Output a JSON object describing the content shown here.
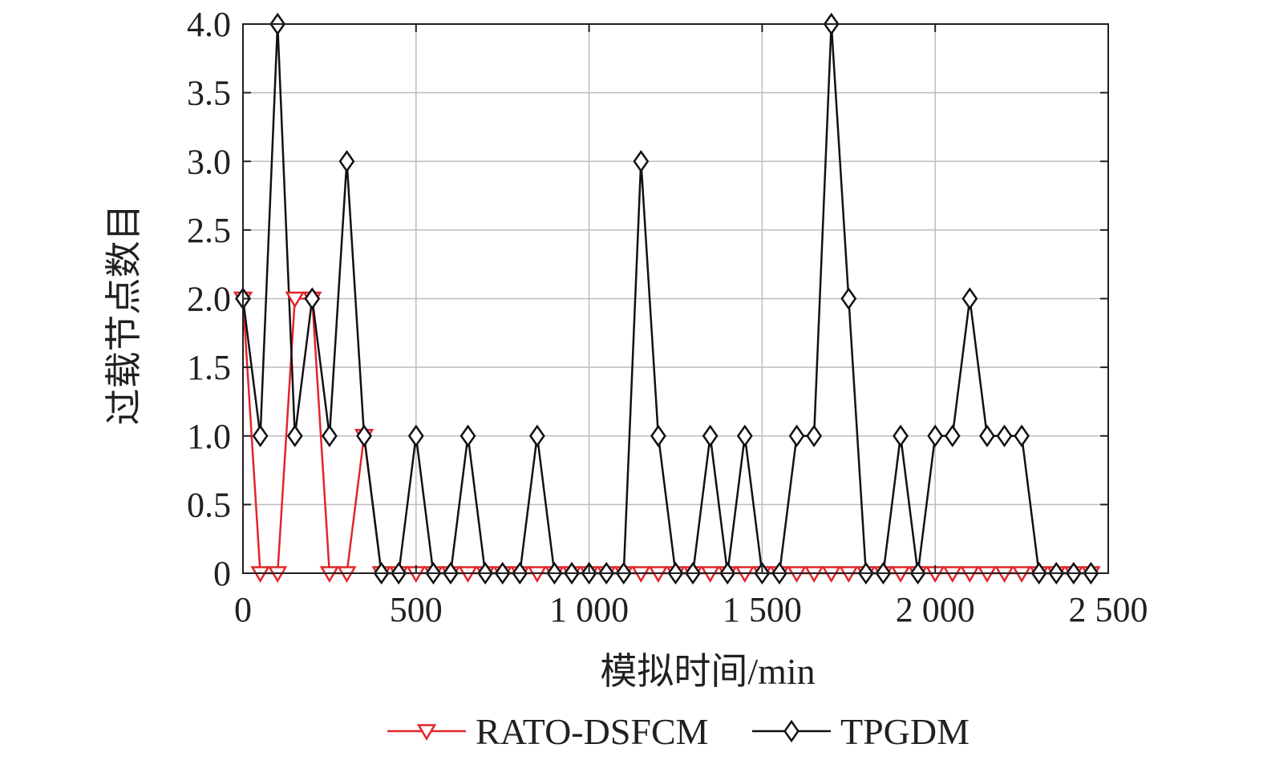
{
  "chart_data": {
    "type": "line",
    "title": "",
    "xlabel": "模拟时间/min",
    "ylabel": "过载节点数目",
    "xlim": [
      0,
      2500
    ],
    "ylim": [
      0,
      4
    ],
    "grid": true,
    "legend_position": "bottom",
    "x_ticks": [
      {
        "value": 0,
        "label": "0"
      },
      {
        "value": 500,
        "label": "500"
      },
      {
        "value": 1000,
        "label": "1 000"
      },
      {
        "value": 1500,
        "label": "1 500"
      },
      {
        "value": 2000,
        "label": "2 000"
      },
      {
        "value": 2500,
        "label": "2 500"
      }
    ],
    "y_ticks": [
      {
        "value": 0,
        "label": "0"
      },
      {
        "value": 0.5,
        "label": "0.5"
      },
      {
        "value": 1.0,
        "label": "1.0"
      },
      {
        "value": 1.5,
        "label": "1.5"
      },
      {
        "value": 2.0,
        "label": "2.0"
      },
      {
        "value": 2.5,
        "label": "2.5"
      },
      {
        "value": 3.0,
        "label": "3.0"
      },
      {
        "value": 3.5,
        "label": "3.5"
      },
      {
        "value": 4.0,
        "label": "4.0"
      }
    ],
    "x": [
      0,
      50,
      100,
      150,
      200,
      250,
      300,
      350,
      400,
      450,
      500,
      550,
      600,
      650,
      700,
      750,
      800,
      850,
      900,
      950,
      1000,
      1050,
      1100,
      1150,
      1200,
      1250,
      1300,
      1350,
      1400,
      1450,
      1500,
      1550,
      1600,
      1650,
      1700,
      1750,
      1800,
      1850,
      1900,
      1950,
      2000,
      2050,
      2100,
      2150,
      2200,
      2250,
      2300,
      2350,
      2400,
      2450
    ],
    "series": [
      {
        "name": "RATO-DSFCM",
        "color": "#e0262b",
        "marker": "triangle-down",
        "values": [
          2,
          0,
          0,
          2,
          2,
          0,
          0,
          1,
          0,
          0,
          0,
          0,
          0,
          0,
          0,
          0,
          0,
          0,
          0,
          0,
          0,
          0,
          0,
          0,
          0,
          0,
          0,
          0,
          0,
          0,
          0,
          0,
          0,
          0,
          0,
          0,
          0,
          0,
          0,
          0,
          0,
          0,
          0,
          0,
          0,
          0,
          0,
          0,
          0,
          0
        ]
      },
      {
        "name": "TPGDM",
        "color": "#111111",
        "marker": "diamond",
        "values": [
          2,
          1,
          4,
          1,
          2,
          1,
          3,
          1,
          0,
          0,
          1,
          0,
          0,
          1,
          0,
          0,
          0,
          1,
          0,
          0,
          0,
          0,
          0,
          3,
          1,
          0,
          0,
          1,
          0,
          1,
          0,
          0,
          1,
          1,
          4,
          2,
          0,
          0,
          1,
          0,
          1,
          1,
          2,
          1,
          1,
          1,
          0,
          0,
          0,
          0
        ]
      }
    ]
  }
}
